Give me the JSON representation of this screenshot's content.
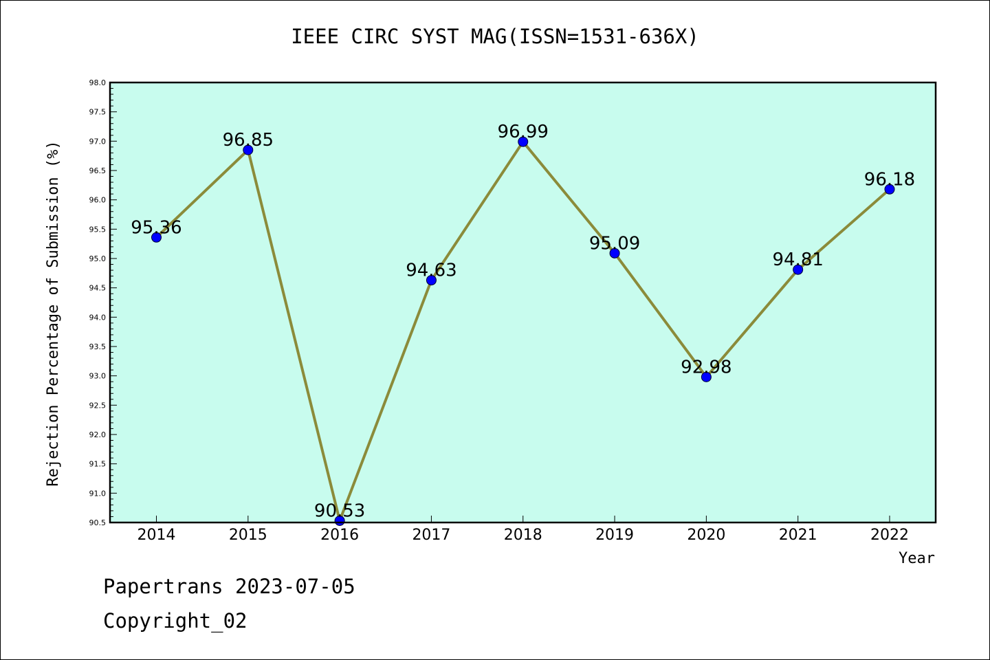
{
  "chart_data": {
    "type": "line",
    "title": "IEEE CIRC SYST MAG(ISSN=1531-636X)",
    "xlabel": "Year",
    "ylabel": "Rejection Percentage of Submission (%)",
    "categories": [
      "2014",
      "2015",
      "2016",
      "2017",
      "2018",
      "2019",
      "2020",
      "2021",
      "2022"
    ],
    "series": [
      {
        "values": [
          95.36,
          96.85,
          90.53,
          94.63,
          96.99,
          95.09,
          92.98,
          94.81,
          96.18
        ]
      }
    ],
    "data_labels": [
      "95.36",
      "96.85",
      "90.53",
      "94.63",
      "96.99",
      "95.09",
      "92.98",
      "94.81",
      "96.18"
    ],
    "ylim": [
      90.5,
      98.0
    ],
    "ytick_labels": [
      "90.5",
      "91.0",
      "91.5",
      "92.0",
      "92.5",
      "93.0",
      "93.5",
      "94.0",
      "94.5",
      "95.0",
      "95.5",
      "96.0",
      "96.5",
      "97.0",
      "97.5",
      "98.0"
    ],
    "grid": false,
    "colors": {
      "plot_background": "#c8fcee",
      "line": "#8b8b3a",
      "marker": "#0000ff"
    }
  },
  "footer": {
    "line1": "Papertrans 2023-07-05",
    "line2": "Copyright_02"
  }
}
